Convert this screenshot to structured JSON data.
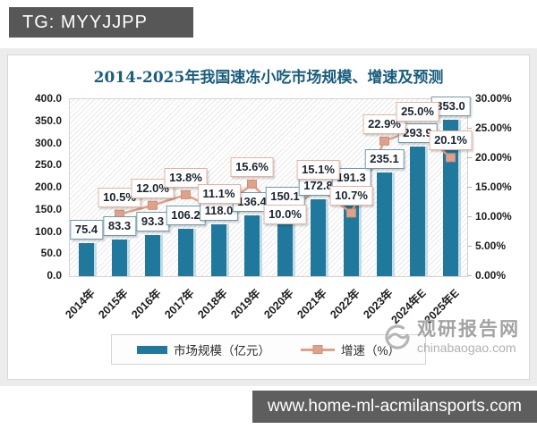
{
  "header": {
    "tg_label": "TG: MYYJJPP"
  },
  "footer": {
    "site_url": "www.home-ml-acmilansports.com"
  },
  "watermark": {
    "name": "观研报告网",
    "domain": "chinabaogao.com"
  },
  "chart_data": {
    "type": "bar+line combo",
    "title": "2014-2025年我国速冻小吃市场规模、增速及预测",
    "categories": [
      "2014年",
      "2015年",
      "2016年",
      "2017年",
      "2018年",
      "2019年",
      "2020年",
      "2021年",
      "2022年",
      "2023年",
      "2024年E",
      "2025年E"
    ],
    "series": [
      {
        "name": "市场规模（亿元）",
        "type": "bar",
        "axis": "left",
        "values": [
          75.4,
          83.3,
          93.3,
          106.2,
          118.0,
          136.4,
          150.1,
          172.8,
          191.3,
          235.1,
          293.9,
          353.0
        ]
      },
      {
        "name": "增速（%）",
        "type": "line",
        "axis": "right",
        "values": [
          null,
          10.5,
          12.0,
          13.8,
          11.1,
          15.6,
          10.0,
          15.1,
          10.7,
          22.9,
          25.0,
          20.1
        ]
      }
    ],
    "left_axis": {
      "min": 0,
      "max": 400,
      "ticks": [
        "400.0",
        "350.0",
        "300.0",
        "250.0",
        "200.0",
        "150.0",
        "100.0",
        "50.0",
        "0.0"
      ]
    },
    "right_axis": {
      "min": 0,
      "max": 30,
      "ticks": [
        "30.00%",
        "25.00%",
        "20.00%",
        "15.00%",
        "10.00%",
        "5.00%",
        "0.00%"
      ]
    },
    "colors": {
      "bar": "#20799c",
      "line": "#dfa189",
      "marker_border": "#cf9078"
    },
    "legend_position": "bottom",
    "grid": false,
    "background": "diagonal-hatch",
    "layout": {
      "pct_label_below_categories": [
        "2020年",
        "2022年"
      ]
    }
  }
}
